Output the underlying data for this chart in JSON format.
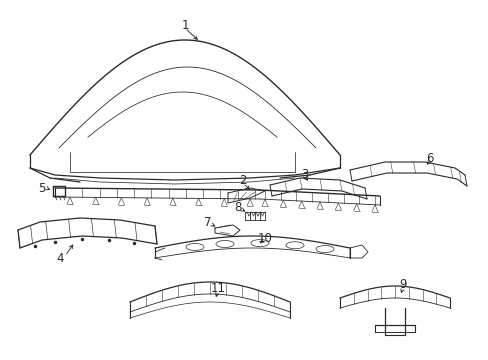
{
  "bg_color": "#ffffff",
  "line_color": "#2a2a2a",
  "lw": 0.8,
  "font_size": 8.5
}
